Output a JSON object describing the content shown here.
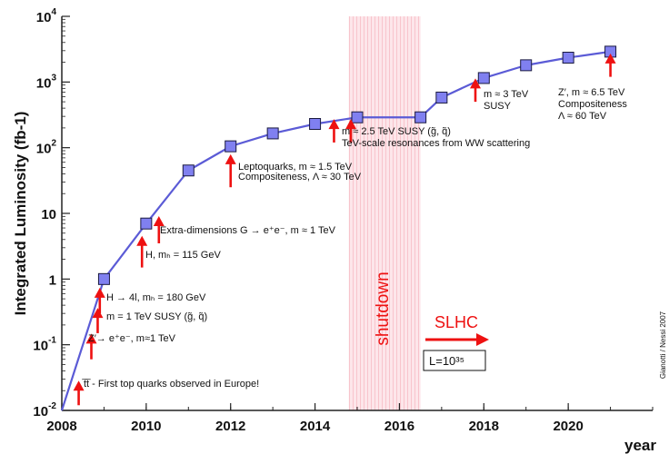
{
  "chart_data": {
    "type": "line",
    "title": "",
    "ylabel": "Integrated Luminosity (fb-1)",
    "xlabel": "year",
    "xlim": [
      2008,
      2022
    ],
    "ylim": [
      0.01,
      10000
    ],
    "yscale": "log",
    "x_ticks": [
      "2008",
      "2010",
      "2012",
      "2014",
      "2016",
      "2018",
      "2020"
    ],
    "y_ticks": [
      {
        "value": 0.01,
        "base": "10",
        "exp": "-2"
      },
      {
        "value": 0.1,
        "base": "10",
        "exp": "-1"
      },
      {
        "value": 1,
        "base": "1",
        "exp": ""
      },
      {
        "value": 10,
        "base": "10",
        "exp": ""
      },
      {
        "value": 100,
        "base": "10",
        "exp": "2"
      },
      {
        "value": 1000,
        "base": "10",
        "exp": "3"
      },
      {
        "value": 10000,
        "base": "10",
        "exp": "4"
      }
    ],
    "series": [
      {
        "name": "Integrated luminosity",
        "color": "#5b5bd6",
        "marker_color": "#8080f0",
        "x": [
          2009,
          2010,
          2011,
          2012,
          2013,
          2014,
          2015,
          2016.5,
          2017,
          2018,
          2019,
          2020,
          2021
        ],
        "y": [
          1,
          7,
          45,
          105,
          165,
          230,
          290,
          290,
          580,
          1150,
          1800,
          2350,
          2900
        ]
      }
    ],
    "curve_start": {
      "x": 2008,
      "y": 0.01
    },
    "shutdown_band": {
      "x0": 2014.8,
      "x1": 2016.5,
      "label": "shutdown",
      "color": "#f0a0a8"
    },
    "annotations": [
      {
        "text": "t̅t̅ - First top quarks observed in Europe!",
        "arrow_x": 2008.4,
        "arrow_y0": 0.012,
        "arrow_y1": 0.025
      },
      {
        "text": "Z′→ e⁺e⁻, m≈1 TeV",
        "arrow_x": 2008.7,
        "arrow_y0": 0.06,
        "arrow_y1": 0.13
      },
      {
        "text": "m = 1 TeV SUSY (g̃, q̃)",
        "arrow_x": 2008.85,
        "arrow_y0": 0.15,
        "arrow_y1": 0.32
      },
      {
        "text": "H → 4l, mₕ = 180 GeV",
        "arrow_x": 2008.9,
        "arrow_y0": 0.3,
        "arrow_y1": 0.65
      },
      {
        "text": "H, mₕ = 115 GeV",
        "arrow_x": 2009.9,
        "arrow_y0": 1.5,
        "arrow_y1": 4
      },
      {
        "text": "Extra-dimensions G → e⁺e⁻, m ≈ 1 TeV",
        "arrow_x": 2010.3,
        "arrow_y0": 3.5,
        "arrow_y1": 8
      },
      {
        "text": "Leptoquarks, m ≈ 1.5 TeV",
        "arrow_x": 2012,
        "arrow_y0": 25,
        "arrow_y1": 70
      },
      {
        "text": "Compositeness, Λ ≈ 30 TeV",
        "arrow_x": null,
        "arrow_y0": null,
        "arrow_y1": null
      },
      {
        "text": "m ≈ 2.5 TeV SUSY (g̃, q̃)",
        "arrow_x": 2014.45,
        "arrow_y0": 120,
        "arrow_y1": 240
      },
      {
        "text": "TeV-scale resonances from WW scattering",
        "arrow_x": 2014.85,
        "arrow_y0": 120,
        "arrow_y1": 240
      },
      {
        "text": "m ≈ 3 TeV",
        "arrow_x": 2017.8,
        "arrow_y0": 500,
        "arrow_y1": 1000
      },
      {
        "text": "SUSY",
        "arrow_x": null,
        "arrow_y0": null,
        "arrow_y1": null
      },
      {
        "text": "Z′, m ≈ 6.5 TeV",
        "arrow_x": 2021,
        "arrow_y0": 1200,
        "arrow_y1": 2400
      },
      {
        "text": "Compositeness",
        "arrow_x": null,
        "arrow_y0": null,
        "arrow_y1": null
      },
      {
        "text": "Λ ≈ 60 TeV",
        "arrow_x": null,
        "arrow_y0": null,
        "arrow_y1": null
      }
    ],
    "slhc_label": "SLHC",
    "luminosity_box": "L=10³⁵",
    "credit": "Gianotti / Nessi 2007",
    "colors": {
      "arrow": "#ee1111",
      "slhc": "#ee1111",
      "axis": "#222222",
      "grid": "#bbbbbb"
    }
  }
}
